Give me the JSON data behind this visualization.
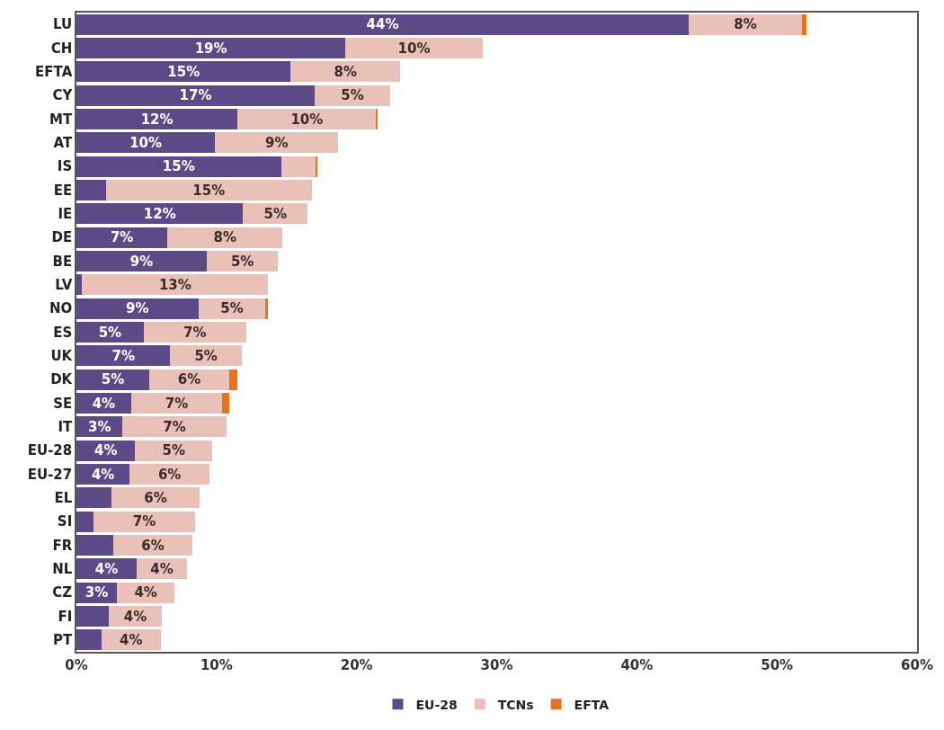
{
  "chart_data": {
    "type": "bar",
    "orientation": "horizontal",
    "stacked": true,
    "categories": [
      "LU",
      "CH",
      "EFTA",
      "CY",
      "MT",
      "AT",
      "IS",
      "EE",
      "IE",
      "DE",
      "BE",
      "LV",
      "NO",
      "ES",
      "UK",
      "DK",
      "SE",
      "IT",
      "EU-28",
      "EU-27",
      "EL",
      "SI",
      "FR",
      "NL",
      "CZ",
      "FI",
      "PT"
    ],
    "series": [
      {
        "name": "EU-28",
        "color": "#5b4a85",
        "values": [
          43.7,
          19.2,
          15.3,
          17.0,
          11.5,
          9.9,
          14.6,
          2.1,
          11.9,
          6.5,
          9.3,
          0.4,
          8.7,
          4.8,
          6.7,
          5.2,
          3.9,
          3.3,
          4.2,
          3.8,
          2.5,
          1.2,
          2.6,
          4.3,
          2.9,
          2.3,
          1.8
        ],
        "value_labels": [
          "44%",
          "19%",
          "15%",
          "17%",
          "12%",
          "10%",
          "15%",
          null,
          "12%",
          "7%",
          "9%",
          null,
          "9%",
          "5%",
          "7%",
          "5%",
          "4%",
          "3%",
          "4%",
          "4%",
          null,
          null,
          null,
          "4%",
          "3%",
          null,
          null
        ]
      },
      {
        "name": "TCNs",
        "color": "#e9c1b8",
        "values": [
          8.1,
          9.8,
          7.8,
          5.4,
          9.9,
          8.8,
          2.5,
          14.7,
          4.6,
          8.2,
          5.1,
          13.3,
          4.8,
          7.3,
          5.1,
          5.7,
          6.5,
          7.4,
          5.5,
          5.7,
          6.3,
          7.3,
          5.7,
          3.6,
          4.1,
          3.8,
          4.2
        ],
        "value_labels": [
          "8%",
          "10%",
          "8%",
          "5%",
          "10%",
          "9%",
          null,
          "15%",
          "5%",
          "8%",
          "5%",
          "13%",
          "5%",
          "7%",
          "5%",
          "6%",
          "7%",
          "7%",
          "5%",
          "6%",
          "6%",
          "7%",
          "6%",
          "4%",
          "4%",
          "4%",
          "4%"
        ]
      },
      {
        "name": "EFTA",
        "color": "#e8711c",
        "values": [
          0.3,
          0,
          0,
          0,
          0.1,
          0,
          0.1,
          0,
          0,
          0,
          0,
          0,
          0.2,
          0,
          0,
          0.6,
          0.5,
          0,
          0,
          0,
          0,
          0,
          0,
          0,
          0,
          0,
          0
        ]
      }
    ],
    "xlim": [
      0,
      60
    ],
    "xticks": [
      {
        "value": 0,
        "label": "0%"
      },
      {
        "value": 10,
        "label": "10%"
      },
      {
        "value": 20,
        "label": "20%"
      },
      {
        "value": 30,
        "label": "30%"
      },
      {
        "value": 40,
        "label": "40%"
      },
      {
        "value": 50,
        "label": "50%"
      },
      {
        "value": 60,
        "label": "60%"
      }
    ],
    "grid": false,
    "legend": "bottom"
  }
}
